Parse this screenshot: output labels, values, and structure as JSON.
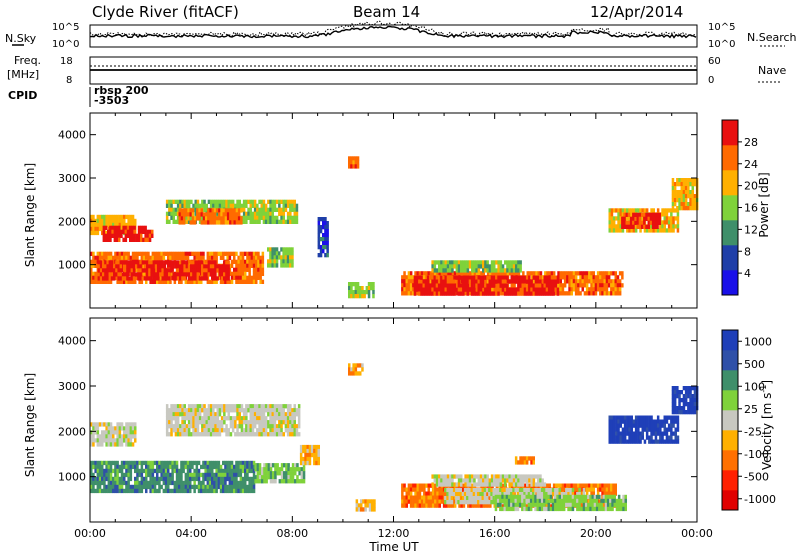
{
  "header": {
    "station": "Clyde River (fitACF)",
    "beam": "Beam 14",
    "date": "12/Apr/2014"
  },
  "top_panels": {
    "nsky_label": "N.Sky",
    "nsky_ticks": [
      "10^5",
      "10^0"
    ],
    "nsearch_label": "N.Search",
    "nsearch_ticks": [
      "10^5",
      "10^0"
    ],
    "freq_label": "Freq.",
    "freq_unit": "[MHz]",
    "freq_ticks": [
      "18",
      "8"
    ],
    "nave_label": "Nave",
    "nave_ticks": [
      "60",
      "0"
    ],
    "cpid_label": "CPID",
    "cpid_name": "rbsp 200",
    "cpid_value": "-3503"
  },
  "chart_data": [
    {
      "type": "heatmap",
      "quantity": "Power",
      "unit": "dB",
      "ylabel": "Slant Range [km]",
      "yticks": [
        "1000",
        "2000",
        "3000",
        "4000"
      ],
      "ylim": [
        0,
        4500
      ],
      "xlim": [
        0,
        24
      ],
      "colorbar_label": "Power [dB]",
      "colorbar_ticks": [
        "4",
        "8",
        "12",
        "16",
        "20",
        "24",
        "28"
      ],
      "colors": [
        "#1a10e8",
        "#1f3fa8",
        "#3f8f6a",
        "#7fd23a",
        "#ffb000",
        "#ff6a00",
        "#e81010"
      ],
      "regions": [
        {
          "t0": 0.0,
          "t1": 1.8,
          "r0": 1700,
          "r1": 2150,
          "level": 4
        },
        {
          "t0": 0.5,
          "t1": 2.5,
          "r0": 1600,
          "r1": 1900,
          "level": 6
        },
        {
          "t0": 0.0,
          "t1": 6.8,
          "r0": 600,
          "r1": 1300,
          "level": 5
        },
        {
          "t0": 0.3,
          "t1": 5.5,
          "r0": 700,
          "r1": 1100,
          "level": 6
        },
        {
          "t0": 3.0,
          "t1": 8.2,
          "r0": 1950,
          "r1": 2500,
          "level": 3
        },
        {
          "t0": 3.5,
          "t1": 6.0,
          "r0": 2000,
          "r1": 2300,
          "level": 5
        },
        {
          "t0": 7.0,
          "t1": 8.0,
          "r0": 1000,
          "r1": 1400,
          "level": 3
        },
        {
          "t0": 12.3,
          "t1": 21.0,
          "r0": 350,
          "r1": 850,
          "level": 5
        },
        {
          "t0": 12.8,
          "t1": 18.5,
          "r0": 300,
          "r1": 750,
          "level": 6
        },
        {
          "t0": 13.5,
          "t1": 17.0,
          "r0": 850,
          "r1": 1100,
          "level": 3
        },
        {
          "t0": 20.5,
          "t1": 23.2,
          "r0": 1800,
          "r1": 2300,
          "level": 4
        },
        {
          "t0": 21.0,
          "t1": 22.5,
          "r0": 1900,
          "r1": 2200,
          "level": 6
        },
        {
          "t0": 23.0,
          "t1": 24.0,
          "r0": 2350,
          "r1": 3000,
          "level": 4
        },
        {
          "t0": 10.2,
          "t1": 10.6,
          "r0": 3300,
          "r1": 3500,
          "level": 5
        },
        {
          "t0": 10.2,
          "t1": 11.2,
          "r0": 250,
          "r1": 600,
          "level": 3
        },
        {
          "t0": 9.0,
          "t1": 9.4,
          "r0": 1200,
          "r1": 2100,
          "level": 1
        }
      ]
    },
    {
      "type": "heatmap",
      "quantity": "Velocity",
      "unit": "m s^-1",
      "ylabel": "Slant Range [km]",
      "yticks": [
        "1000",
        "2000",
        "3000",
        "4000"
      ],
      "ylim": [
        0,
        4500
      ],
      "xlim": [
        0,
        24
      ],
      "xticks": [
        "00:00",
        "04:00",
        "08:00",
        "12:00",
        "16:00",
        "20:00",
        "00:00"
      ],
      "xlabel": "Time UT",
      "colorbar_label": "Velocity",
      "colorbar_unit": "[m s",
      "colorbar_unit_exp": "-1",
      "colorbar_unit_end": "]",
      "colorbar_ticks": [
        "1000",
        "500",
        "100",
        "25",
        "-25",
        "-100",
        "-500",
        "-1000"
      ],
      "colors": [
        "#1f3fb8",
        "#2f50a8",
        "#3f8f6a",
        "#7fd23a",
        "#c8c8c0",
        "#ffb000",
        "#ff7000",
        "#ff2000",
        "#e00000"
      ],
      "regions": [
        {
          "t0": 0.0,
          "t1": 1.8,
          "r0": 1700,
          "r1": 2200,
          "level": 4
        },
        {
          "t0": 0.0,
          "t1": 6.5,
          "r0": 650,
          "r1": 1350,
          "level": 2
        },
        {
          "t0": 3.0,
          "t1": 8.3,
          "r0": 1950,
          "r1": 2600,
          "level": 4
        },
        {
          "t0": 6.5,
          "t1": 8.5,
          "r0": 900,
          "r1": 1300,
          "level": 3
        },
        {
          "t0": 8.3,
          "t1": 9.0,
          "r0": 1300,
          "r1": 1700,
          "level": 5
        },
        {
          "t0": 12.3,
          "t1": 20.8,
          "r0": 350,
          "r1": 850,
          "level": 6
        },
        {
          "t0": 14.0,
          "t1": 19.5,
          "r0": 450,
          "r1": 750,
          "level": 4
        },
        {
          "t0": 16.0,
          "t1": 21.2,
          "r0": 300,
          "r1": 600,
          "level": 3
        },
        {
          "t0": 13.5,
          "t1": 18.0,
          "r0": 850,
          "r1": 1050,
          "level": 4
        },
        {
          "t0": 16.8,
          "t1": 17.5,
          "r0": 1300,
          "r1": 1450,
          "level": 6
        },
        {
          "t0": 20.5,
          "t1": 23.2,
          "r0": 1800,
          "r1": 2350,
          "level": 0
        },
        {
          "t0": 23.0,
          "t1": 24.0,
          "r0": 2400,
          "r1": 3000,
          "level": 0
        },
        {
          "t0": 10.2,
          "t1": 10.8,
          "r0": 3300,
          "r1": 3500,
          "level": 5
        },
        {
          "t0": 10.5,
          "t1": 11.2,
          "r0": 300,
          "r1": 500,
          "level": 5
        }
      ]
    }
  ]
}
